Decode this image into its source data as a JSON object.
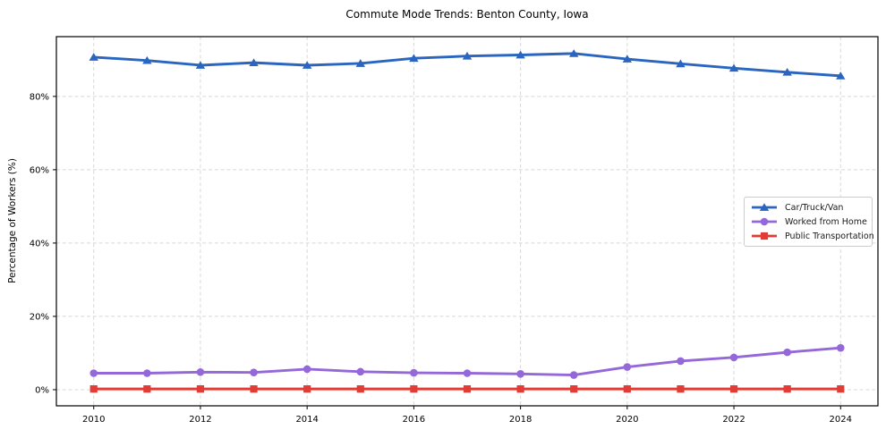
{
  "figure": {
    "background": "#ffffff"
  },
  "chart_data": {
    "type": "line",
    "title": "Commute Mode Trends: Benton County, Iowa",
    "xlabel": "",
    "ylabel": "Percentage of Workers (%)",
    "x": [
      2010,
      2011,
      2012,
      2013,
      2014,
      2015,
      2016,
      2017,
      2018,
      2019,
      2020,
      2021,
      2022,
      2023,
      2024
    ],
    "series": [
      {
        "name": "Car/Truck/Van",
        "color": "#2A65C0",
        "marker": "triangle",
        "values": [
          90.7,
          89.8,
          88.5,
          89.2,
          88.5,
          89.0,
          90.4,
          91.0,
          91.3,
          91.7,
          90.2,
          88.9,
          87.7,
          86.6,
          85.6
        ]
      },
      {
        "name": "Worked from Home",
        "color": "#9468D8",
        "marker": "circle",
        "values": [
          4.5,
          4.5,
          4.8,
          4.7,
          5.6,
          4.9,
          4.6,
          4.5,
          4.3,
          4.0,
          6.2,
          7.8,
          8.8,
          10.2,
          11.4
        ]
      },
      {
        "name": "Public Transportation",
        "color": "#E13C35",
        "marker": "square",
        "values": [
          0.2,
          0.2,
          0.2,
          0.2,
          0.2,
          0.2,
          0.2,
          0.2,
          0.2,
          0.2,
          0.2,
          0.2,
          0.2,
          0.2,
          0.2
        ]
      }
    ],
    "xticks": [
      2010,
      2012,
      2014,
      2016,
      2018,
      2020,
      2022,
      2024
    ],
    "yticks": [
      0,
      20,
      40,
      60,
      80
    ],
    "ytick_labels": [
      "0%",
      "20%",
      "40%",
      "60%",
      "80%"
    ],
    "xlim": [
      2009.3,
      2024.7
    ],
    "ylim": [
      -4.4,
      96.3
    ],
    "grid": {
      "show": true,
      "style": "dashed",
      "color": "#d8d8d8"
    },
    "legend": {
      "position": "center-right",
      "background": "#ffffff",
      "border_color": "#cccccc"
    },
    "axis_color": "#000000"
  }
}
